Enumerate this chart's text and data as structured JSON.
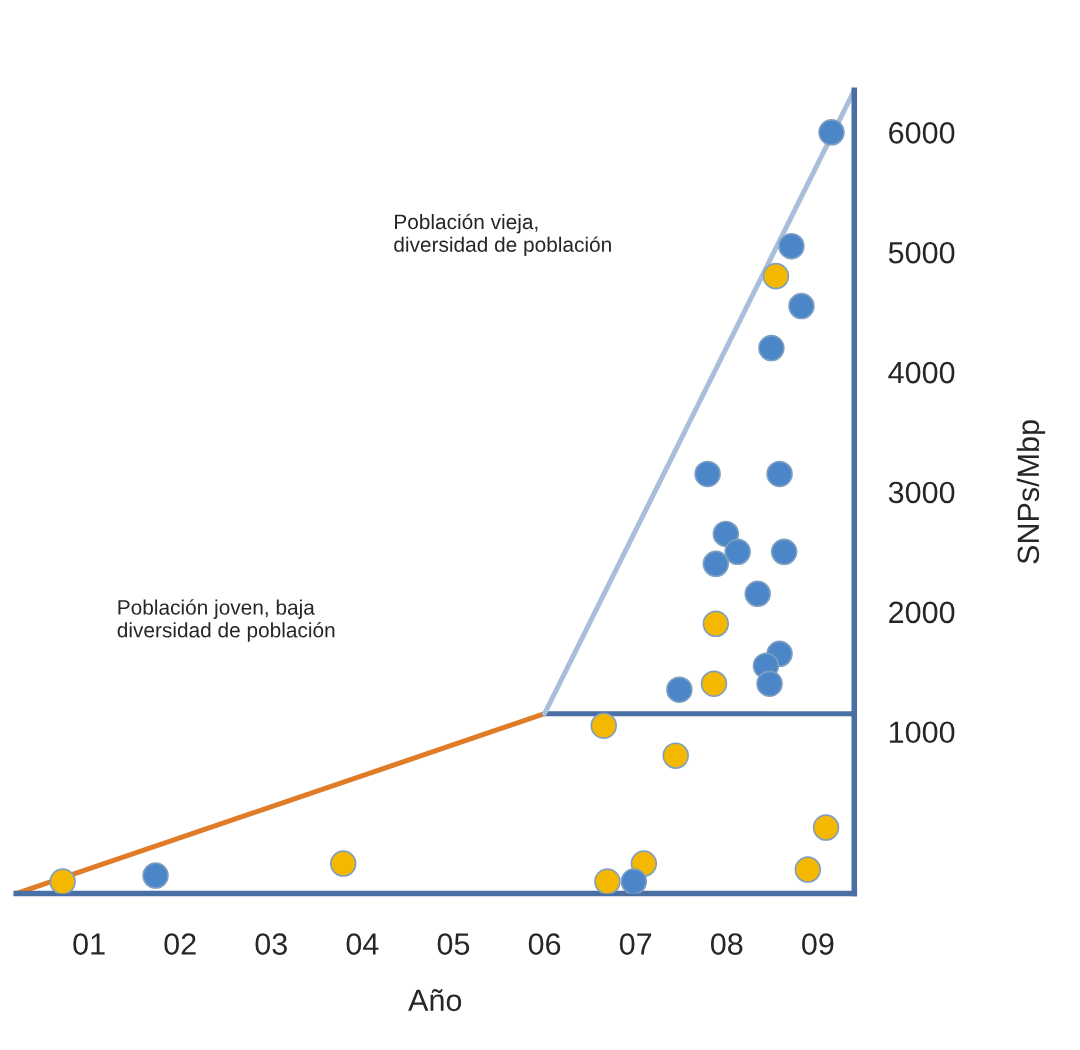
{
  "chart_data": {
    "type": "scatter",
    "xlabel": "Año",
    "ylabel": "SNPs/Mbp",
    "xlim": [
      0.2,
      9.4
    ],
    "ylim": [
      -350,
      6350
    ],
    "xticks": [
      {
        "value": 1,
        "label": "01"
      },
      {
        "value": 2,
        "label": "02"
      },
      {
        "value": 3,
        "label": "03"
      },
      {
        "value": 4,
        "label": "04"
      },
      {
        "value": 5,
        "label": "05"
      },
      {
        "value": 6,
        "label": "06"
      },
      {
        "value": 7,
        "label": "07"
      },
      {
        "value": 8,
        "label": "08"
      },
      {
        "value": 9,
        "label": "09"
      }
    ],
    "yticks": [
      1000,
      2000,
      3000,
      4000,
      5000,
      6000
    ],
    "grid": false,
    "marker": "circle",
    "annotations": [
      "Población vieja,\ndiversidad de población",
      "Población joven, baja\ndiversidad de población"
    ],
    "series": [
      {
        "type": "line",
        "marker": "none",
        "color": "#e07b28",
        "x": [
          0.2,
          6.0
        ],
        "values": [
          -350,
          1150
        ]
      },
      {
        "type": "line",
        "marker": "none",
        "color": "#4a6fa5",
        "x": [
          6.0,
          9.4
        ],
        "values": [
          1150,
          1150
        ]
      },
      {
        "type": "line",
        "marker": "none",
        "color": "#a9bfd9",
        "x": [
          6.0,
          9.4
        ],
        "values": [
          1150,
          6350
        ]
      },
      {
        "color": "#f5b800",
        "x": [
          0.71,
          3.79,
          6.65,
          7.44,
          9.09,
          7.09,
          6.69,
          8.89,
          7.88,
          7.86,
          8.54
        ],
        "values": [
          -250,
          -100,
          1050,
          800,
          200,
          -100,
          -250,
          -150,
          1900,
          1400,
          4800
        ]
      },
      {
        "color": "#4a86c8",
        "x": [
          1.73,
          6.98,
          7.48,
          8.58,
          8.43,
          8.47,
          9.15,
          8.71,
          8.82,
          8.49,
          7.79,
          8.58,
          7.99,
          8.12,
          7.88,
          8.63,
          8.34
        ],
        "values": [
          -200,
          -250,
          1350,
          1650,
          1550,
          1400,
          6000,
          5050,
          4550,
          4200,
          3150,
          3150,
          2650,
          2500,
          2400,
          2500,
          2150
        ]
      }
    ]
  }
}
